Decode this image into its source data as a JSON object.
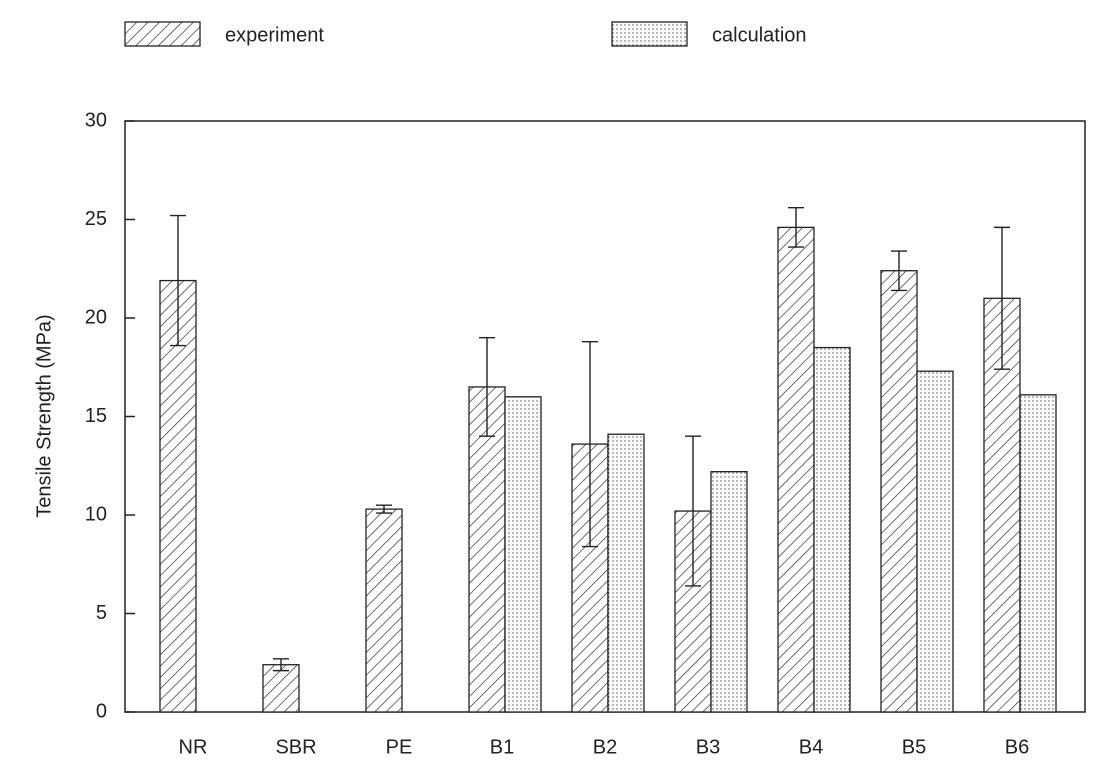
{
  "chart_data": {
    "type": "bar",
    "y_label": "Tensile Strength (MPa)",
    "categories": [
      "NR",
      "SBR",
      "PE",
      "B1",
      "B2",
      "B3",
      "B4",
      "B5",
      "B6"
    ],
    "series": [
      {
        "name": "experiment",
        "color": "#333333",
        "pattern": "hatch",
        "values": [
          21.9,
          2.4,
          10.3,
          16.5,
          13.6,
          10.2,
          24.6,
          22.4,
          21.0
        ],
        "errors": [
          3.3,
          0.3,
          0.2,
          2.5,
          5.2,
          3.8,
          1.0,
          1.0,
          3.6
        ]
      },
      {
        "name": "calculation",
        "color": "#555555",
        "pattern": "dots",
        "values": [
          null,
          null,
          null,
          16.0,
          14.1,
          12.2,
          18.5,
          17.3,
          16.1
        ]
      }
    ],
    "ylim": [
      0,
      30
    ],
    "yticks": [
      0,
      5,
      10,
      15,
      20,
      25,
      30
    ],
    "grid": false
  }
}
